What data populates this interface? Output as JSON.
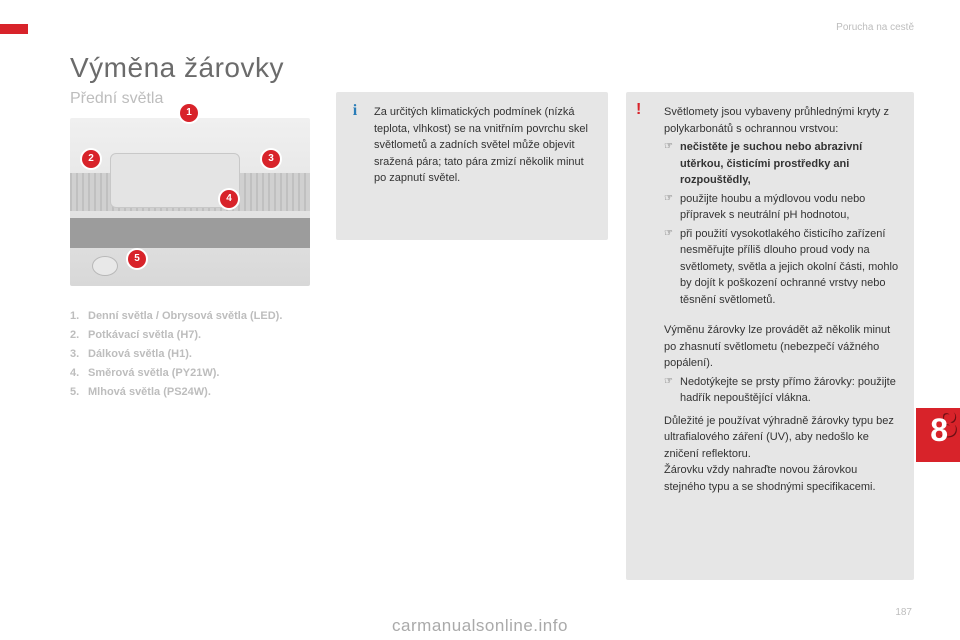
{
  "header": {
    "section_label": "Porucha na cestě"
  },
  "title": "Výměna žárovky",
  "subtitle": "Přední světla",
  "diagram": {
    "markers": [
      {
        "n": "1"
      },
      {
        "n": "2"
      },
      {
        "n": "3"
      },
      {
        "n": "4"
      },
      {
        "n": "5"
      }
    ]
  },
  "legend": [
    {
      "num": "1.",
      "text": "Denní světla / Obrysová světla (LED)."
    },
    {
      "num": "2.",
      "text": "Potkávací světla (H7)."
    },
    {
      "num": "3.",
      "text": "Dálková světla (H1)."
    },
    {
      "num": "4.",
      "text": "Směrová světla (PY21W)."
    },
    {
      "num": "5.",
      "text": "Mlhová světla (PS24W)."
    }
  ],
  "info": {
    "icon": "i",
    "text": "Za určitých klimatických podmínek (nízká teplota, vlhkost) se na vnitřním povrchu skel světlometů a zadních světel může objevit sražená pára; tato pára zmizí několik minut po zapnutí světel."
  },
  "warn": {
    "icon": "!",
    "intro": "Světlomety jsou vybaveny průhlednými kryty z polykarbonátů s ochrannou vrstvou:",
    "bullets": [
      {
        "text": "nečistěte je suchou nebo abrazivní utěrkou, čisticími prostředky ani rozpouštědly,",
        "bold": true
      },
      {
        "text": "použijte houbu a mýdlovou vodu nebo přípravek s neutrální pH hodnotou,",
        "bold": false
      },
      {
        "text": "při použití vysokotlakého čisticího zařízení nesměřujte příliš dlouho proud vody na světlomety, světla a jejich okolní části, mohlo by dojít k poškození ochranné vrstvy nebo těsnění světlometů.",
        "bold": false
      }
    ],
    "para2_a": "Výměnu žárovky lze provádět až několik minut po zhasnutí světlometu (nebezpečí vážného popálení).",
    "bullets2": [
      {
        "text": "Nedotýkejte se prsty přímo žárovky: použijte hadřík nepouštějící vlákna."
      }
    ],
    "para2_b": "Důležité je používat výhradně žárovky typu bez ultrafialového záření (UV), aby nedošlo ke zničení reflektoru.",
    "para2_c": "Žárovku vždy nahraďte novou žárovkou stejného typu a se shodnými specifikacemi."
  },
  "chapter": "8",
  "page_number": "187",
  "footer_url": "carmanualsonline.info",
  "colors": {
    "accent": "#d8232a",
    "muted": "#bdbdbd",
    "box_bg": "#e6e6e6",
    "info_icon": "#2a7db8"
  }
}
